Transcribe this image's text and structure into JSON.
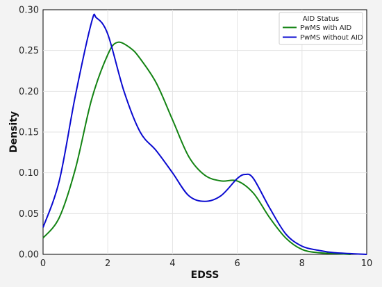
{
  "chart_data": {
    "type": "line",
    "title": "",
    "xlabel": "EDSS",
    "ylabel": "Density",
    "xlim": [
      0,
      10
    ],
    "ylim": [
      0,
      0.3
    ],
    "xticks": [
      0,
      2,
      4,
      6,
      8,
      10
    ],
    "xtick_labels": [
      "0",
      "2",
      "4",
      "6",
      "8",
      "10"
    ],
    "yticks": [
      0,
      0.05,
      0.1,
      0.15,
      0.2,
      0.25,
      0.3
    ],
    "ytick_labels": [
      "0.00",
      "0.05",
      "0.10",
      "0.15",
      "0.20",
      "0.25",
      "0.30"
    ],
    "grid": true,
    "legend": {
      "title": "AID Status",
      "placement": "top-right"
    },
    "series": [
      {
        "name": "PwMS with AID",
        "color": "#138313",
        "points": [
          [
            0,
            0.02
          ],
          [
            0.5,
            0.045
          ],
          [
            1,
            0.105
          ],
          [
            1.5,
            0.19
          ],
          [
            2,
            0.245
          ],
          [
            2.3,
            0.26
          ],
          [
            2.7,
            0.253
          ],
          [
            3,
            0.24
          ],
          [
            3.5,
            0.21
          ],
          [
            4,
            0.165
          ],
          [
            4.5,
            0.12
          ],
          [
            5,
            0.097
          ],
          [
            5.5,
            0.09
          ],
          [
            6,
            0.09
          ],
          [
            6.5,
            0.075
          ],
          [
            7,
            0.045
          ],
          [
            7.5,
            0.02
          ],
          [
            8,
            0.006
          ],
          [
            8.5,
            0.002
          ],
          [
            9,
            0.001
          ],
          [
            9.5,
            0.0
          ]
        ]
      },
      {
        "name": "PwMS without AID",
        "color": "#0a0ad0",
        "points": [
          [
            0,
            0.033
          ],
          [
            0.5,
            0.09
          ],
          [
            1,
            0.195
          ],
          [
            1.5,
            0.285
          ],
          [
            1.65,
            0.29
          ],
          [
            2,
            0.27
          ],
          [
            2.5,
            0.2
          ],
          [
            3,
            0.15
          ],
          [
            3.5,
            0.127
          ],
          [
            4,
            0.1
          ],
          [
            4.5,
            0.072
          ],
          [
            5,
            0.065
          ],
          [
            5.5,
            0.072
          ],
          [
            6,
            0.093
          ],
          [
            6.25,
            0.098
          ],
          [
            6.5,
            0.093
          ],
          [
            7,
            0.057
          ],
          [
            7.5,
            0.025
          ],
          [
            8,
            0.01
          ],
          [
            8.5,
            0.005
          ],
          [
            9,
            0.002
          ],
          [
            10,
            0.0
          ]
        ]
      }
    ]
  }
}
